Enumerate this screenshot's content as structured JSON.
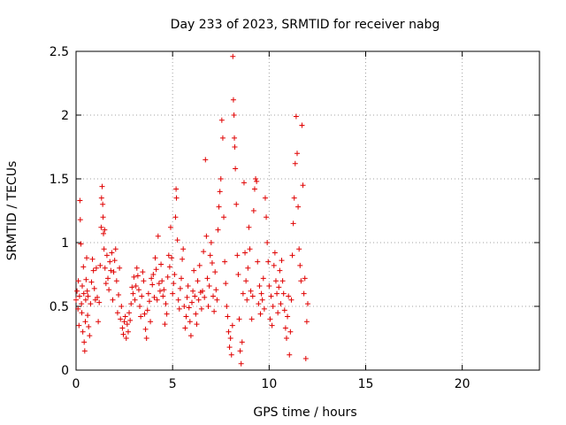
{
  "chart_data": {
    "type": "scatter",
    "title": "Day 233 of 2023, SRMTID for receiver nabg",
    "xlabel": "GPS time / hours",
    "ylabel": "SRMTID / TECUs",
    "xlim": [
      0,
      24
    ],
    "ylim": [
      0,
      2.5
    ],
    "x_ticks": [
      0,
      5,
      10,
      15,
      20
    ],
    "x_tick_labels": [
      "0",
      "5",
      "10",
      "15",
      "20"
    ],
    "y_ticks": [
      0,
      0.5,
      1,
      1.5,
      2,
      2.5
    ],
    "y_tick_labels": [
      "0",
      "0.5",
      "1",
      "1.5",
      "2",
      "2.5"
    ],
    "grid": true,
    "marker": "+",
    "series": [
      {
        "color": "#e00000",
        "points": [
          [
            0.0,
            0.55
          ],
          [
            0.05,
            0.62
          ],
          [
            0.1,
            0.48
          ],
          [
            0.12,
            0.7
          ],
          [
            0.15,
            0.35
          ],
          [
            0.18,
            0.58
          ],
          [
            0.2,
            1.33
          ],
          [
            0.22,
            1.18
          ],
          [
            0.25,
            0.99
          ],
          [
            0.28,
            0.52
          ],
          [
            0.3,
            0.45
          ],
          [
            0.32,
            0.66
          ],
          [
            0.35,
            0.3
          ],
          [
            0.38,
            0.81
          ],
          [
            0.4,
            0.6
          ],
          [
            0.42,
            0.22
          ],
          [
            0.45,
            0.15
          ],
          [
            0.48,
            0.38
          ],
          [
            0.5,
            0.55
          ],
          [
            0.52,
            0.71
          ],
          [
            0.55,
            0.88
          ],
          [
            0.58,
            0.62
          ],
          [
            0.6,
            0.43
          ],
          [
            0.62,
            0.58
          ],
          [
            0.65,
            0.34
          ],
          [
            0.7,
            0.27
          ],
          [
            0.75,
            0.52
          ],
          [
            0.8,
            0.69
          ],
          [
            0.85,
            0.87
          ],
          [
            0.9,
            0.78
          ],
          [
            0.95,
            0.64
          ],
          [
            1.0,
            0.55
          ],
          [
            1.05,
            0.8
          ],
          [
            1.1,
            0.57
          ],
          [
            1.15,
            0.38
          ],
          [
            1.2,
            0.53
          ],
          [
            1.25,
            0.82
          ],
          [
            1.3,
            1.12
          ],
          [
            1.32,
            1.35
          ],
          [
            1.35,
            1.44
          ],
          [
            1.38,
            1.3
          ],
          [
            1.4,
            1.2
          ],
          [
            1.42,
            1.07
          ],
          [
            1.45,
            0.95
          ],
          [
            1.48,
            1.1
          ],
          [
            1.5,
            0.8
          ],
          [
            1.55,
            0.68
          ],
          [
            1.6,
            0.9
          ],
          [
            1.65,
            0.72
          ],
          [
            1.7,
            0.63
          ],
          [
            1.75,
            0.85
          ],
          [
            1.8,
            0.78
          ],
          [
            1.85,
            0.92
          ],
          [
            1.9,
            0.55
          ],
          [
            1.95,
            0.77
          ],
          [
            2.0,
            0.86
          ],
          [
            2.05,
            0.95
          ],
          [
            2.1,
            0.7
          ],
          [
            2.15,
            0.45
          ],
          [
            2.2,
            0.59
          ],
          [
            2.25,
            0.8
          ],
          [
            2.3,
            0.4
          ],
          [
            2.35,
            0.5
          ],
          [
            2.4,
            0.33
          ],
          [
            2.45,
            0.28
          ],
          [
            2.5,
            0.38
          ],
          [
            2.55,
            0.42
          ],
          [
            2.6,
            0.25
          ],
          [
            2.65,
            0.36
          ],
          [
            2.7,
            0.3
          ],
          [
            2.75,
            0.45
          ],
          [
            2.8,
            0.39
          ],
          [
            2.85,
            0.52
          ],
          [
            2.9,
            0.65
          ],
          [
            2.95,
            0.6
          ],
          [
            3.0,
            0.73
          ],
          [
            3.05,
            0.55
          ],
          [
            3.1,
            0.66
          ],
          [
            3.15,
            0.8
          ],
          [
            3.2,
            0.74
          ],
          [
            3.25,
            0.63
          ],
          [
            3.3,
            0.5
          ],
          [
            3.35,
            0.42
          ],
          [
            3.4,
            0.58
          ],
          [
            3.45,
            0.77
          ],
          [
            3.5,
            0.7
          ],
          [
            3.55,
            0.44
          ],
          [
            3.6,
            0.32
          ],
          [
            3.65,
            0.25
          ],
          [
            3.7,
            0.47
          ],
          [
            3.75,
            0.6
          ],
          [
            3.8,
            0.54
          ],
          [
            3.85,
            0.38
          ],
          [
            3.9,
            0.72
          ],
          [
            3.95,
            0.67
          ],
          [
            4.0,
            0.75
          ],
          [
            4.05,
            0.57
          ],
          [
            4.1,
            0.88
          ],
          [
            4.15,
            0.79
          ],
          [
            4.2,
            0.55
          ],
          [
            4.25,
            1.05
          ],
          [
            4.3,
            0.68
          ],
          [
            4.35,
            0.62
          ],
          [
            4.4,
            0.83
          ],
          [
            4.45,
            0.7
          ],
          [
            4.5,
            0.58
          ],
          [
            4.55,
            0.63
          ],
          [
            4.6,
            0.36
          ],
          [
            4.65,
            0.52
          ],
          [
            4.7,
            0.44
          ],
          [
            4.75,
            0.73
          ],
          [
            4.8,
            0.9
          ],
          [
            4.85,
            0.81
          ],
          [
            4.9,
            1.12
          ],
          [
            4.95,
            0.88
          ],
          [
            5.0,
            0.6
          ],
          [
            5.05,
            0.68
          ],
          [
            5.1,
            0.75
          ],
          [
            5.15,
            1.2
          ],
          [
            5.18,
            1.42
          ],
          [
            5.2,
            1.35
          ],
          [
            5.25,
            1.02
          ],
          [
            5.3,
            0.55
          ],
          [
            5.35,
            0.48
          ],
          [
            5.4,
            0.64
          ],
          [
            5.45,
            0.72
          ],
          [
            5.5,
            0.87
          ],
          [
            5.55,
            0.95
          ],
          [
            5.6,
            0.5
          ],
          [
            5.65,
            0.33
          ],
          [
            5.7,
            0.42
          ],
          [
            5.75,
            0.57
          ],
          [
            5.8,
            0.66
          ],
          [
            5.85,
            0.49
          ],
          [
            5.9,
            0.38
          ],
          [
            5.95,
            0.27
          ],
          [
            6.0,
            0.53
          ],
          [
            6.05,
            0.62
          ],
          [
            6.1,
            0.78
          ],
          [
            6.15,
            0.58
          ],
          [
            6.2,
            0.44
          ],
          [
            6.25,
            0.36
          ],
          [
            6.3,
            0.7
          ],
          [
            6.35,
            0.55
          ],
          [
            6.4,
            0.82
          ],
          [
            6.45,
            0.61
          ],
          [
            6.5,
            0.48
          ],
          [
            6.55,
            0.62
          ],
          [
            6.6,
            0.93
          ],
          [
            6.65,
            0.57
          ],
          [
            6.7,
            1.65
          ],
          [
            6.75,
            1.05
          ],
          [
            6.8,
            0.72
          ],
          [
            6.85,
            0.5
          ],
          [
            6.9,
            0.66
          ],
          [
            6.95,
            0.9
          ],
          [
            7.0,
            1.0
          ],
          [
            7.05,
            0.84
          ],
          [
            7.1,
            0.58
          ],
          [
            7.15,
            0.46
          ],
          [
            7.2,
            0.77
          ],
          [
            7.25,
            0.63
          ],
          [
            7.3,
            0.55
          ],
          [
            7.35,
            1.1
          ],
          [
            7.4,
            1.28
          ],
          [
            7.45,
            1.4
          ],
          [
            7.5,
            1.5
          ],
          [
            7.55,
            1.96
          ],
          [
            7.6,
            1.82
          ],
          [
            7.65,
            1.2
          ],
          [
            7.7,
            0.85
          ],
          [
            7.75,
            0.68
          ],
          [
            7.8,
            0.5
          ],
          [
            7.85,
            0.42
          ],
          [
            7.9,
            0.3
          ],
          [
            7.95,
            0.18
          ],
          [
            8.0,
            0.25
          ],
          [
            8.05,
            0.12
          ],
          [
            8.1,
            0.35
          ],
          [
            8.12,
            2.46
          ],
          [
            8.15,
            2.12
          ],
          [
            8.18,
            2.0
          ],
          [
            8.2,
            1.82
          ],
          [
            8.22,
            1.75
          ],
          [
            8.25,
            1.58
          ],
          [
            8.3,
            1.3
          ],
          [
            8.35,
            0.9
          ],
          [
            8.4,
            0.75
          ],
          [
            8.45,
            0.4
          ],
          [
            8.5,
            0.15
          ],
          [
            8.55,
            0.05
          ],
          [
            8.6,
            0.22
          ],
          [
            8.65,
            0.6
          ],
          [
            8.7,
            1.47
          ],
          [
            8.75,
            0.92
          ],
          [
            8.8,
            0.7
          ],
          [
            8.85,
            0.55
          ],
          [
            8.9,
            0.8
          ],
          [
            8.95,
            1.12
          ],
          [
            9.0,
            0.95
          ],
          [
            9.05,
            0.62
          ],
          [
            9.1,
            0.4
          ],
          [
            9.15,
            0.58
          ],
          [
            9.2,
            1.25
          ],
          [
            9.25,
            1.42
          ],
          [
            9.3,
            1.5
          ],
          [
            9.35,
            1.48
          ],
          [
            9.4,
            0.85
          ],
          [
            9.45,
            0.52
          ],
          [
            9.5,
            0.66
          ],
          [
            9.55,
            0.44
          ],
          [
            9.6,
            0.6
          ],
          [
            9.65,
            0.55
          ],
          [
            9.7,
            0.72
          ],
          [
            9.75,
            0.48
          ],
          [
            9.8,
            1.35
          ],
          [
            9.85,
            1.2
          ],
          [
            9.9,
            1.0
          ],
          [
            9.95,
            0.85
          ],
          [
            10.0,
            0.66
          ],
          [
            10.05,
            0.4
          ],
          [
            10.1,
            0.58
          ],
          [
            10.15,
            0.35
          ],
          [
            10.2,
            0.5
          ],
          [
            10.25,
            0.82
          ],
          [
            10.3,
            0.92
          ],
          [
            10.35,
            0.7
          ],
          [
            10.4,
            0.6
          ],
          [
            10.45,
            0.45
          ],
          [
            10.5,
            0.65
          ],
          [
            10.55,
            0.78
          ],
          [
            10.6,
            0.52
          ],
          [
            10.65,
            0.86
          ],
          [
            10.7,
            0.7
          ],
          [
            10.75,
            0.6
          ],
          [
            10.8,
            0.47
          ],
          [
            10.85,
            0.33
          ],
          [
            10.9,
            0.25
          ],
          [
            10.95,
            0.42
          ],
          [
            11.0,
            0.58
          ],
          [
            11.05,
            0.12
          ],
          [
            11.1,
            0.3
          ],
          [
            11.15,
            0.55
          ],
          [
            11.2,
            0.9
          ],
          [
            11.25,
            1.15
          ],
          [
            11.3,
            1.35
          ],
          [
            11.35,
            1.62
          ],
          [
            11.4,
            1.99
          ],
          [
            11.45,
            1.7
          ],
          [
            11.5,
            1.28
          ],
          [
            11.55,
            0.95
          ],
          [
            11.6,
            0.82
          ],
          [
            11.65,
            0.7
          ],
          [
            11.7,
            1.92
          ],
          [
            11.75,
            1.45
          ],
          [
            11.8,
            0.6
          ],
          [
            11.85,
            0.72
          ],
          [
            11.9,
            0.09
          ],
          [
            11.95,
            0.38
          ],
          [
            12.0,
            0.52
          ]
        ]
      }
    ]
  }
}
